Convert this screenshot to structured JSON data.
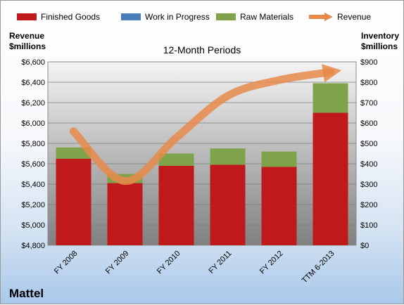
{
  "chart_data": {
    "type": "bar",
    "subtitle": "12-Month Periods",
    "company": "Mattel",
    "y_left_label": [
      "Revenue",
      "$millions"
    ],
    "y_right_label": [
      "Inventory",
      "$millions"
    ],
    "categories": [
      "FY 2008",
      "FY 2009",
      "FY 2010",
      "FY 2011",
      "FY 2012",
      "TTM 6-2013"
    ],
    "y_left_ticks": [
      "$4,800",
      "$5,000",
      "$5,200",
      "$5,400",
      "$5,600",
      "$5,800",
      "$6,000",
      "$6,200",
      "$6,400",
      "$6,600"
    ],
    "y_right_ticks": [
      "$0",
      "$100",
      "$200",
      "$300",
      "$400",
      "$500",
      "$600",
      "$700",
      "$800",
      "$900"
    ],
    "y_left_range": [
      4800,
      6600
    ],
    "y_right_range": [
      0,
      900
    ],
    "series": [
      {
        "name": "Finished Goods",
        "axis": "right",
        "color": "#c0191c",
        "values": [
          425,
          305,
          390,
          395,
          385,
          650
        ]
      },
      {
        "name": "Work in Progress",
        "axis": "right",
        "color": "#4a7ebb",
        "values": [
          0,
          0,
          0,
          0,
          0,
          0
        ]
      },
      {
        "name": "Raw Materials",
        "axis": "right",
        "color": "#7fa34a",
        "values": [
          55,
          45,
          60,
          80,
          75,
          145
        ]
      },
      {
        "name": "Revenue",
        "axis": "left",
        "type": "line",
        "color": "#e8894a",
        "values": [
          5918,
          5430,
          5856,
          6266,
          6421,
          6500
        ]
      }
    ],
    "legend_position": "top",
    "grid": true
  }
}
